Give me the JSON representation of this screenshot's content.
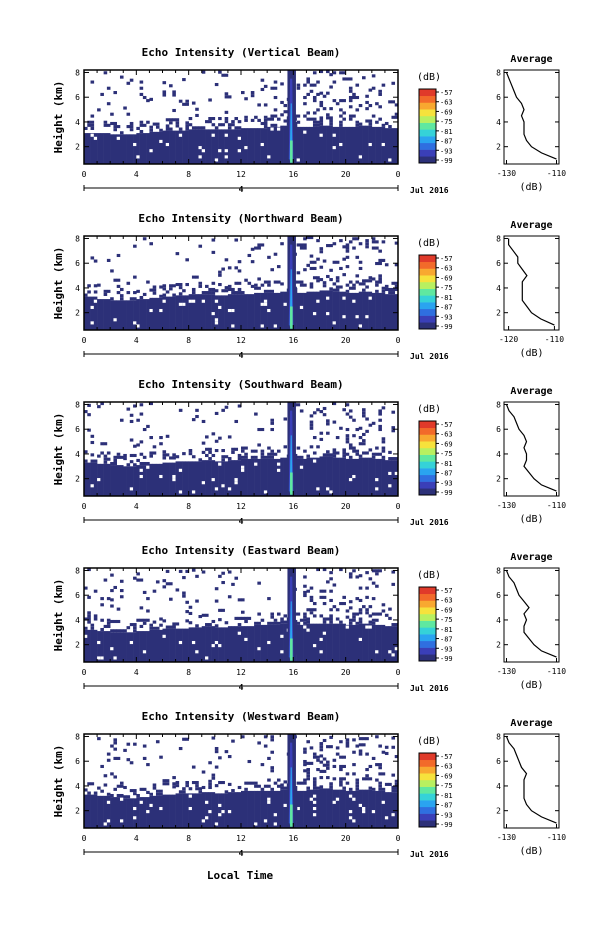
{
  "footer": {
    "xlabel": "Local Time"
  },
  "colorbar": {
    "unit": "(dB)",
    "ticks": [
      "-57",
      "-63",
      "-69",
      "-75",
      "-81",
      "-87",
      "-93",
      "-99"
    ],
    "colors": [
      "#2c3078",
      "#3a3fb8",
      "#2f6fe0",
      "#2aa4f0",
      "#35d2d8",
      "#5fe8a0",
      "#b8f060",
      "#f6e23c",
      "#f8a830",
      "#f26a2a",
      "#e03a2a"
    ]
  },
  "chart_data": [
    {
      "type": "heatmap",
      "title": "Echo Intensity (Vertical Beam)",
      "ylabel": "Height (km)",
      "xticks": [
        "0",
        "4",
        "8",
        "12",
        "16",
        "20",
        "0"
      ],
      "yticks": [
        "2",
        "4",
        "6",
        "8"
      ],
      "date_label": "Jul 2016",
      "day_label": "4",
      "xlim": [
        0,
        24
      ],
      "ylim": [
        0.6,
        8.2
      ],
      "echo_top_km": [
        3.1,
        3.1,
        3.0,
        3.0,
        3.1,
        3.2,
        3.3,
        3.3,
        3.4,
        3.4,
        3.4,
        3.4,
        3.5,
        3.5,
        3.6,
        3.7,
        3.6,
        3.6,
        3.7,
        3.6,
        3.6,
        3.7,
        3.6,
        3.5
      ],
      "plume_time_h": 15.8,
      "profile": {
        "title": "Average",
        "xlabel": "(dB)",
        "xticks": [
          "-130",
          "-110"
        ],
        "yticks": [
          "2",
          "4",
          "6",
          "8"
        ],
        "xlim": [
          -131,
          -109
        ],
        "ylim": [
          0.6,
          8.2
        ],
        "height_km": [
          1.0,
          1.5,
          2.0,
          2.5,
          3.0,
          3.5,
          4.0,
          4.5,
          5.0,
          5.5,
          6.0,
          6.5,
          7.0,
          7.5,
          8.0
        ],
        "db": [
          -110,
          -116,
          -120,
          -122,
          -123,
          -123,
          -123,
          -124,
          -123,
          -124,
          -126,
          -127,
          -128,
          -129,
          -130
        ]
      }
    },
    {
      "type": "heatmap",
      "title": "Echo Intensity (Northward Beam)",
      "ylabel": "Height (km)",
      "xticks": [
        "0",
        "4",
        "8",
        "12",
        "16",
        "20",
        "0"
      ],
      "yticks": [
        "2",
        "4",
        "6",
        "8"
      ],
      "date_label": "Jul 2016",
      "day_label": "4",
      "xlim": [
        0,
        24
      ],
      "ylim": [
        0.6,
        8.2
      ],
      "echo_top_km": [
        3.3,
        3.1,
        3.0,
        3.0,
        3.1,
        3.2,
        3.3,
        3.4,
        3.5,
        3.5,
        3.4,
        3.5,
        3.5,
        3.6,
        3.6,
        3.7,
        3.6,
        3.7,
        3.8,
        3.7,
        3.6,
        3.7,
        3.6,
        3.5
      ],
      "plume_time_h": 15.8,
      "profile": {
        "title": "Average",
        "xlabel": "(dB)",
        "xticks": [
          "-120",
          "-110"
        ],
        "yticks": [
          "2",
          "4",
          "6",
          "8"
        ],
        "xlim": [
          -121,
          -109
        ],
        "ylim": [
          0.6,
          8.2
        ],
        "height_km": [
          1.0,
          1.5,
          2.0,
          2.5,
          3.0,
          3.5,
          4.0,
          4.5,
          5.0,
          5.5,
          6.0,
          6.5,
          7.0,
          7.5,
          8.0
        ],
        "db": [
          -110,
          -113,
          -115,
          -116,
          -117,
          -117,
          -117,
          -117,
          -116,
          -117,
          -118,
          -118,
          -119,
          -120,
          -120
        ]
      }
    },
    {
      "type": "heatmap",
      "title": "Echo Intensity (Southward Beam)",
      "ylabel": "Height (km)",
      "xticks": [
        "0",
        "4",
        "8",
        "12",
        "16",
        "20",
        "0"
      ],
      "yticks": [
        "2",
        "4",
        "6",
        "8"
      ],
      "date_label": "Jul 2016",
      "day_label": "4",
      "xlim": [
        0,
        24
      ],
      "ylim": [
        0.6,
        8.2
      ],
      "echo_top_km": [
        3.3,
        3.2,
        3.1,
        3.0,
        3.1,
        3.2,
        3.3,
        3.4,
        3.4,
        3.5,
        3.4,
        3.5,
        3.6,
        3.6,
        3.6,
        3.7,
        3.6,
        3.7,
        3.8,
        3.7,
        3.6,
        3.7,
        3.6,
        3.5
      ],
      "plume_time_h": 15.8,
      "profile": {
        "title": "Average",
        "xlabel": "(dB)",
        "xticks": [
          "-130",
          "-110"
        ],
        "yticks": [
          "2",
          "4",
          "6",
          "8"
        ],
        "xlim": [
          -131,
          -109
        ],
        "ylim": [
          0.6,
          8.2
        ],
        "height_km": [
          1.0,
          1.5,
          2.0,
          2.5,
          3.0,
          3.5,
          4.0,
          4.5,
          5.0,
          5.5,
          6.0,
          6.5,
          7.0,
          7.5,
          8.0
        ],
        "db": [
          -110,
          -116,
          -119,
          -121,
          -123,
          -122,
          -122,
          -123,
          -122,
          -123,
          -125,
          -126,
          -127,
          -129,
          -130
        ]
      }
    },
    {
      "type": "heatmap",
      "title": "Echo Intensity (Eastward Beam)",
      "ylabel": "Height (km)",
      "xticks": [
        "0",
        "4",
        "8",
        "12",
        "16",
        "20",
        "0"
      ],
      "yticks": [
        "2",
        "4",
        "6",
        "8"
      ],
      "date_label": "Jul 2016",
      "day_label": "4",
      "xlim": [
        0,
        24
      ],
      "ylim": [
        0.6,
        8.2
      ],
      "echo_top_km": [
        3.2,
        3.1,
        3.0,
        3.0,
        3.1,
        3.2,
        3.3,
        3.3,
        3.4,
        3.5,
        3.4,
        3.5,
        3.5,
        3.6,
        3.6,
        3.7,
        3.6,
        3.7,
        3.7,
        3.7,
        3.6,
        3.7,
        3.6,
        3.5
      ],
      "plume_time_h": 15.8,
      "profile": {
        "title": "Average",
        "xlabel": "(dB)",
        "xticks": [
          "-130",
          "-110"
        ],
        "yticks": [
          "2",
          "4",
          "6",
          "8"
        ],
        "xlim": [
          -131,
          -109
        ],
        "ylim": [
          0.6,
          8.2
        ],
        "height_km": [
          1.0,
          1.5,
          2.0,
          2.5,
          3.0,
          3.5,
          4.0,
          4.5,
          5.0,
          5.5,
          6.0,
          6.5,
          7.0,
          7.5,
          8.0
        ],
        "db": [
          -110,
          -116,
          -119,
          -121,
          -123,
          -123,
          -122,
          -123,
          -121,
          -123,
          -125,
          -126,
          -127,
          -129,
          -130
        ]
      }
    },
    {
      "type": "heatmap",
      "title": "Echo Intensity (Westward Beam)",
      "ylabel": "Height (km)",
      "xticks": [
        "0",
        "4",
        "8",
        "12",
        "16",
        "20",
        "0"
      ],
      "yticks": [
        "2",
        "4",
        "6",
        "8"
      ],
      "date_label": "Jul 2016",
      "day_label": "4",
      "xlim": [
        0,
        24
      ],
      "ylim": [
        0.6,
        8.2
      ],
      "echo_top_km": [
        3.3,
        3.2,
        3.1,
        3.0,
        3.1,
        3.2,
        3.3,
        3.4,
        3.4,
        3.5,
        3.4,
        3.5,
        3.6,
        3.6,
        3.6,
        3.7,
        3.6,
        3.7,
        3.8,
        3.7,
        3.6,
        3.7,
        3.6,
        3.5
      ],
      "plume_time_h": 15.8,
      "profile": {
        "title": "Average",
        "xlabel": "(dB)",
        "xticks": [
          "-130",
          "-110"
        ],
        "yticks": [
          "2",
          "4",
          "6",
          "8"
        ],
        "xlim": [
          -131,
          -109
        ],
        "ylim": [
          0.6,
          8.2
        ],
        "height_km": [
          1.0,
          1.5,
          2.0,
          2.5,
          3.0,
          3.5,
          4.0,
          4.5,
          5.0,
          5.5,
          6.0,
          6.5,
          7.0,
          7.5,
          8.0
        ],
        "db": [
          -110,
          -116,
          -120,
          -122,
          -123,
          -123,
          -123,
          -123,
          -122,
          -124,
          -125,
          -126,
          -127,
          -129,
          -130
        ]
      }
    }
  ]
}
